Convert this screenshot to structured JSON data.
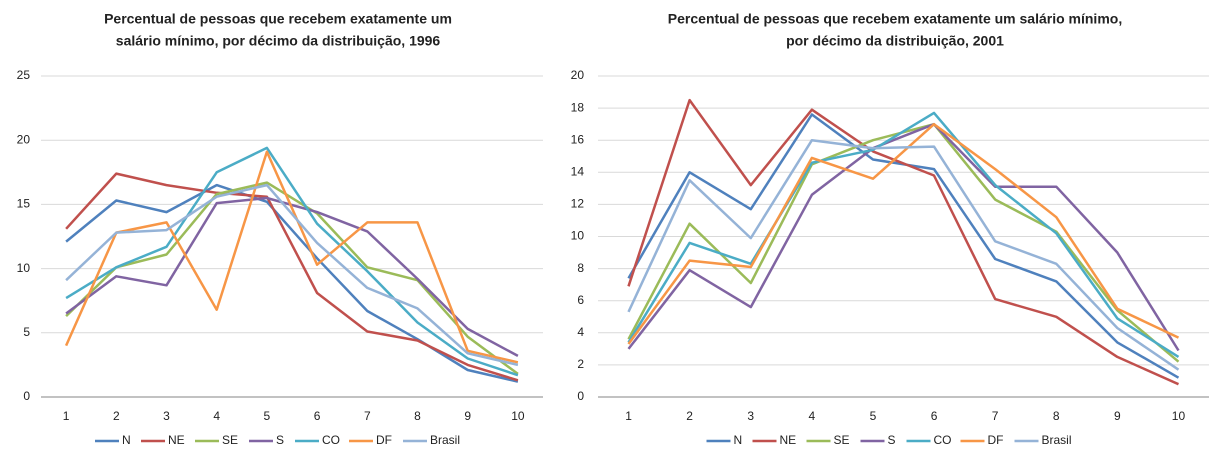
{
  "chart_data": [
    {
      "type": "line",
      "title": [
        "Percentual de pessoas que recebem exatamente um",
        "salário mínimo, por décimo da distribuição, 1996"
      ],
      "categories": [
        "1",
        "2",
        "3",
        "4",
        "5",
        "6",
        "7",
        "8",
        "9",
        "10"
      ],
      "ylim": [
        0,
        25
      ],
      "yticks": [
        0,
        5,
        10,
        15,
        20,
        25
      ],
      "grid": true,
      "legend": "bottom",
      "series": [
        {
          "name": "N",
          "color": "#4f81bd",
          "values": [
            12.1,
            15.3,
            14.4,
            16.5,
            15.2,
            10.8,
            6.7,
            4.5,
            2.1,
            1.2
          ]
        },
        {
          "name": "NE",
          "color": "#c0504d",
          "values": [
            13.1,
            17.4,
            16.5,
            15.9,
            15.6,
            8.1,
            5.1,
            4.4,
            2.5,
            1.3
          ]
        },
        {
          "name": "SE",
          "color": "#9bbb59",
          "values": [
            6.3,
            10.1,
            11.1,
            15.8,
            16.7,
            14.3,
            10.1,
            9.1,
            4.7,
            1.8
          ]
        },
        {
          "name": "S",
          "color": "#8064a2",
          "values": [
            6.5,
            9.4,
            8.7,
            15.1,
            15.5,
            14.4,
            12.9,
            9.2,
            5.3,
            3.2
          ]
        },
        {
          "name": "CO",
          "color": "#4bacc6",
          "values": [
            7.7,
            10.1,
            11.7,
            17.5,
            19.4,
            13.5,
            9.8,
            5.8,
            3.0,
            1.7
          ]
        },
        {
          "name": "DF",
          "color": "#f79646",
          "values": [
            4.0,
            12.8,
            13.6,
            6.8,
            19.1,
            10.3,
            13.6,
            13.6,
            3.6,
            2.7
          ]
        },
        {
          "name": "Brasil",
          "color": "#95b3d7",
          "values": [
            9.1,
            12.8,
            13.0,
            15.6,
            16.5,
            12.0,
            8.5,
            6.9,
            3.4,
            2.5
          ]
        }
      ]
    },
    {
      "type": "line",
      "title": [
        "Percentual de pessoas que recebem exatamente um  salário mínimo,",
        "por décimo da distribuição, 2001"
      ],
      "categories": [
        "1",
        "2",
        "3",
        "4",
        "5",
        "6",
        "7",
        "8",
        "9",
        "10"
      ],
      "ylim": [
        0,
        20
      ],
      "yticks": [
        0,
        2,
        4,
        6,
        8,
        10,
        12,
        14,
        16,
        18,
        20
      ],
      "grid": true,
      "legend": "bottom",
      "series": [
        {
          "name": "N",
          "color": "#4f81bd",
          "values": [
            7.4,
            14.0,
            11.7,
            17.6,
            14.8,
            14.2,
            8.6,
            7.2,
            3.4,
            1.2
          ]
        },
        {
          "name": "NE",
          "color": "#c0504d",
          "values": [
            6.9,
            18.5,
            13.2,
            17.9,
            15.3,
            13.8,
            6.1,
            5.0,
            2.5,
            0.8
          ]
        },
        {
          "name": "SE",
          "color": "#9bbb59",
          "values": [
            3.6,
            10.8,
            7.1,
            14.5,
            16.0,
            17.0,
            12.3,
            10.3,
            5.4,
            2.2
          ]
        },
        {
          "name": "S",
          "color": "#8064a2",
          "values": [
            3.0,
            7.9,
            5.6,
            12.6,
            15.5,
            17.0,
            13.1,
            13.1,
            9.0,
            2.9
          ]
        },
        {
          "name": "CO",
          "color": "#4bacc6",
          "values": [
            3.4,
            9.6,
            8.3,
            14.6,
            15.4,
            17.7,
            13.2,
            10.2,
            4.9,
            2.5
          ]
        },
        {
          "name": "DF",
          "color": "#f79646",
          "values": [
            3.3,
            8.5,
            8.1,
            14.9,
            13.6,
            17.0,
            14.2,
            11.2,
            5.5,
            3.7
          ]
        },
        {
          "name": "Brasil",
          "color": "#95b3d7",
          "values": [
            5.3,
            13.5,
            9.9,
            16.0,
            15.5,
            15.6,
            9.7,
            8.3,
            4.3,
            1.7
          ]
        }
      ]
    }
  ]
}
